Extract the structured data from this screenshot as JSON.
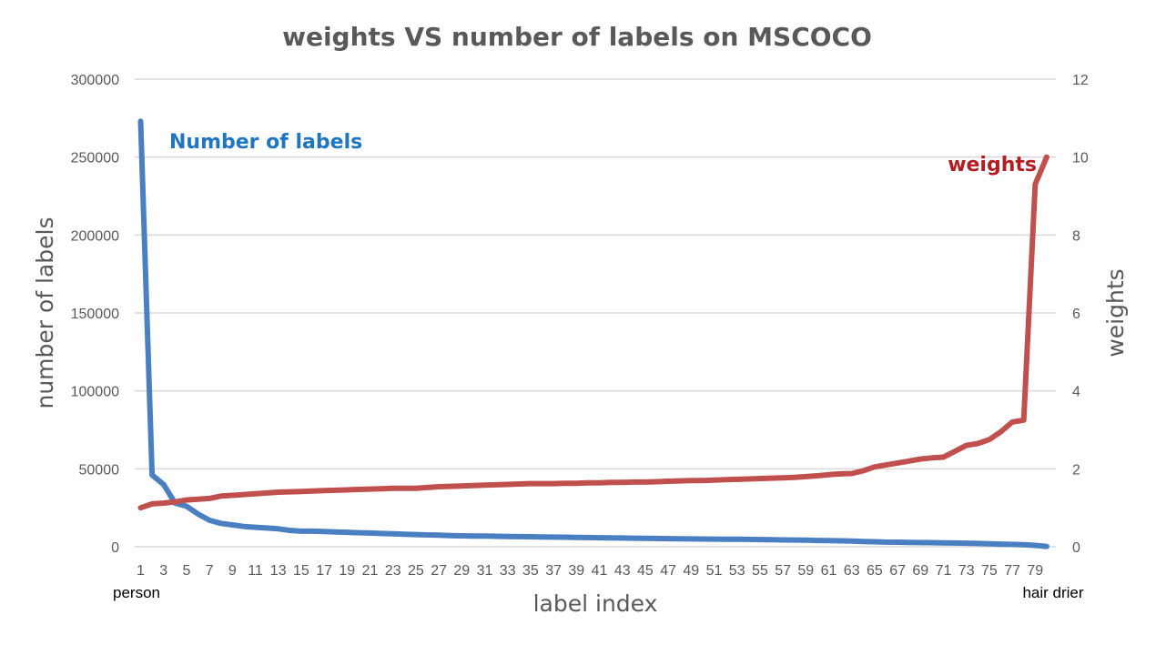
{
  "chart_data": {
    "type": "line",
    "title": "weights VS number of labels on MSCOCO",
    "xlabel": "label index",
    "ylabel": "number of labels",
    "y2label": "weights",
    "x_start_label": "person",
    "x_end_label": "hair drier",
    "xlim": [
      1,
      80
    ],
    "ylim": [
      0,
      300000
    ],
    "y2lim": [
      0,
      12
    ],
    "yticks": [
      "0",
      "50000",
      "100000",
      "150000",
      "200000",
      "250000",
      "300000"
    ],
    "y2ticks": [
      "0",
      "2",
      "4",
      "6",
      "8",
      "10",
      "12"
    ],
    "xtick_labels": [
      "1",
      "3",
      "5",
      "7",
      "9",
      "11",
      "13",
      "15",
      "17",
      "19",
      "21",
      "23",
      "25",
      "27",
      "29",
      "31",
      "33",
      "35",
      "37",
      "39",
      "41",
      "43",
      "45",
      "47",
      "49",
      "51",
      "53",
      "55",
      "57",
      "59",
      "61",
      "63",
      "65",
      "67",
      "69",
      "71",
      "73",
      "75",
      "77",
      "79"
    ],
    "grid": true,
    "series": [
      {
        "name": "Number of labels",
        "axis": "left",
        "color": "#4a7fc1",
        "label_color": "#1f75c0",
        "values": [
          273000,
          46000,
          40000,
          28000,
          26000,
          21000,
          17000,
          15000,
          14000,
          13000,
          12500,
          12000,
          11500,
          10500,
          10000,
          10000,
          9800,
          9500,
          9300,
          9000,
          8800,
          8500,
          8300,
          8000,
          7800,
          7600,
          7400,
          7200,
          7000,
          6900,
          6800,
          6700,
          6600,
          6500,
          6400,
          6300,
          6200,
          6100,
          6000,
          5900,
          5800,
          5700,
          5600,
          5500,
          5400,
          5300,
          5200,
          5100,
          5000,
          4950,
          4900,
          4850,
          4800,
          4700,
          4600,
          4500,
          4400,
          4300,
          4200,
          4000,
          3900,
          3800,
          3600,
          3400,
          3200,
          3000,
          2900,
          2800,
          2700,
          2600,
          2500,
          2400,
          2300,
          2100,
          1900,
          1700,
          1500,
          1300,
          900,
          200
        ]
      },
      {
        "name": "weights",
        "axis": "right",
        "color": "#c0504d",
        "label_color": "#b01e22",
        "values": [
          1.0,
          1.1,
          1.12,
          1.15,
          1.2,
          1.22,
          1.24,
          1.3,
          1.32,
          1.34,
          1.36,
          1.38,
          1.4,
          1.41,
          1.42,
          1.43,
          1.44,
          1.45,
          1.46,
          1.47,
          1.48,
          1.49,
          1.5,
          1.5,
          1.5,
          1.52,
          1.54,
          1.55,
          1.56,
          1.57,
          1.58,
          1.59,
          1.6,
          1.61,
          1.62,
          1.62,
          1.62,
          1.63,
          1.63,
          1.64,
          1.64,
          1.65,
          1.65,
          1.66,
          1.66,
          1.67,
          1.68,
          1.69,
          1.7,
          1.7,
          1.71,
          1.72,
          1.73,
          1.74,
          1.75,
          1.76,
          1.77,
          1.78,
          1.8,
          1.82,
          1.85,
          1.87,
          1.88,
          1.95,
          2.05,
          2.1,
          2.15,
          2.2,
          2.25,
          2.28,
          2.3,
          2.45,
          2.6,
          2.65,
          2.75,
          2.95,
          3.2,
          3.25,
          9.3,
          10.0
        ]
      }
    ]
  }
}
